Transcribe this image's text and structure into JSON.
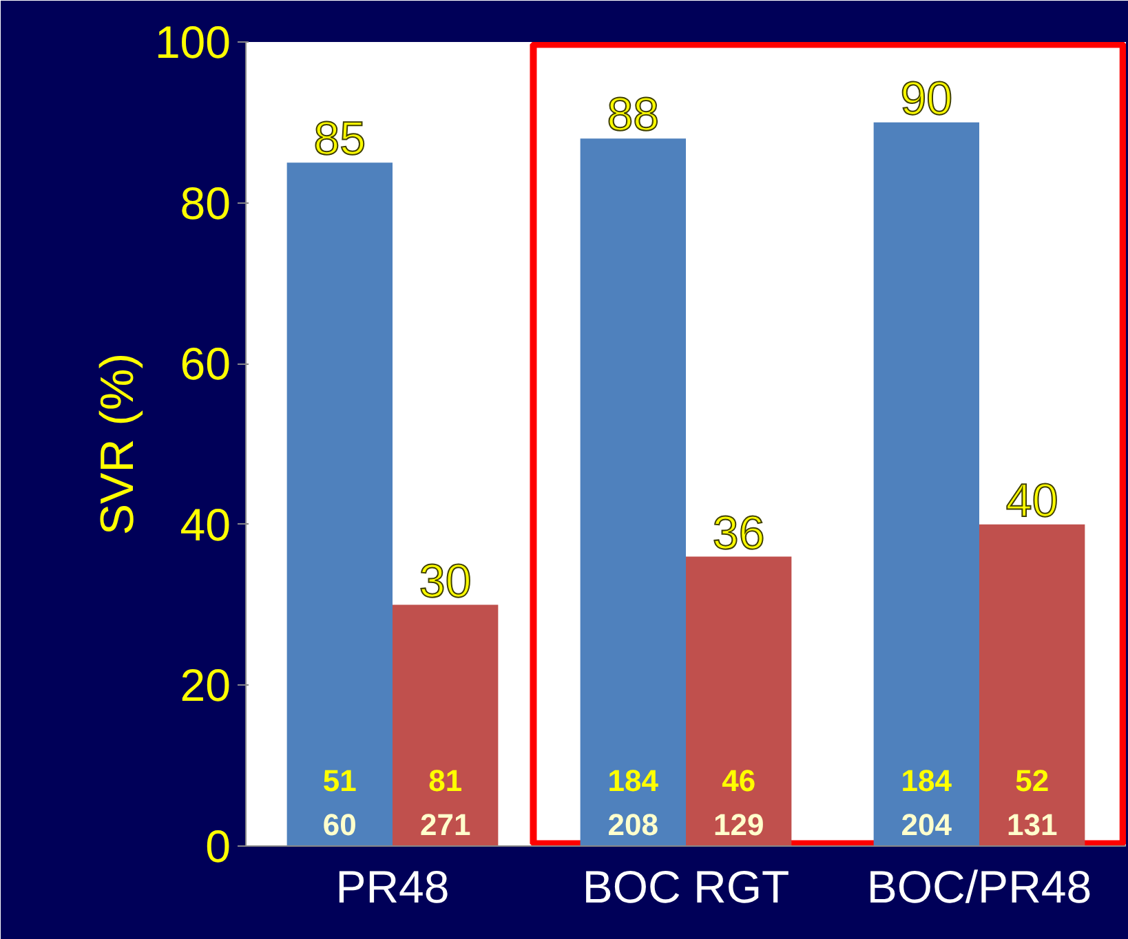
{
  "chart_data": {
    "type": "bar",
    "ylabel": "SVR (%)",
    "categories": [
      "PR48",
      "BOC RGT",
      "BOC/PR48"
    ],
    "series": [
      {
        "color": "#4f81bd",
        "values": [
          85,
          88,
          90
        ]
      },
      {
        "color": "#c0504d",
        "values": [
          30,
          36,
          40
        ]
      }
    ],
    "ylim": [
      0,
      100
    ],
    "yticks": [
      0,
      20,
      40,
      60,
      80,
      100
    ],
    "grid": false,
    "data_labels": true,
    "annotations": [
      "51",
      "60",
      "184",
      "208",
      "184",
      "204",
      "81",
      "271",
      "46",
      "129",
      "52",
      "131"
    ]
  }
}
